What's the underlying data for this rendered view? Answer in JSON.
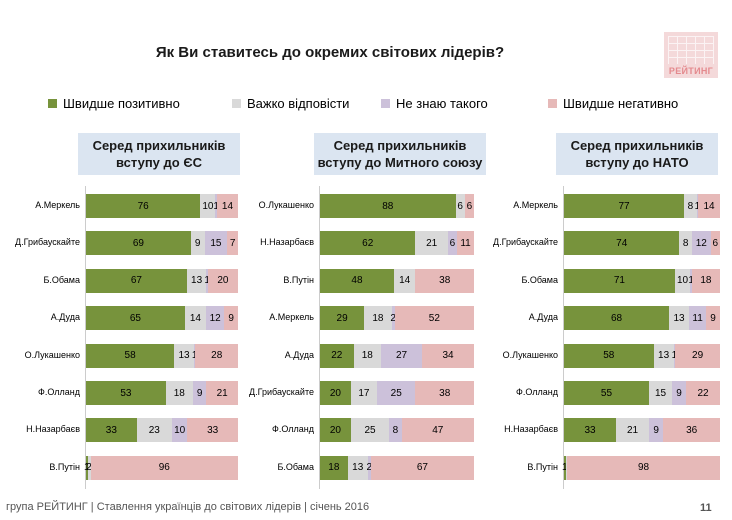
{
  "title": "Як Ви ставитесь до окремих світових лідерів?",
  "logo_text": "РЕЙТИНГ",
  "legend": [
    {
      "label": "Швидше позитивно",
      "color": "#77933c"
    },
    {
      "label": "Важко відповісти",
      "color": "#d9d9d9"
    },
    {
      "label": "Не знаю такого",
      "color": "#ccc1da"
    },
    {
      "label": "Швидше негативно",
      "color": "#e6b9b8"
    }
  ],
  "footer": "група РЕЙТИНГ | Ставлення українців до світових лідерів | січень 2016",
  "page_number": "11",
  "chart_data": [
    {
      "type": "bar",
      "stacked": true,
      "orientation": "horizontal",
      "title": "Серед прихильників\nвступу до ЄС",
      "categories": [
        "А.Меркель",
        "Д.Грибаускайте",
        "Б.Обама",
        "А.Дуда",
        "О.Лукашенко",
        "Ф.Олланд",
        "Н.Назарбаєв",
        "В.Путін"
      ],
      "series": [
        {
          "name": "Швидше позитивно",
          "values": [
            76,
            69,
            67,
            65,
            58,
            53,
            33,
            1
          ]
        },
        {
          "name": "Важко відповісти",
          "values": [
            10,
            9,
            13,
            14,
            13,
            18,
            23,
            2
          ]
        },
        {
          "name": "Не знаю такого",
          "values": [
            1,
            15,
            1,
            12,
            1,
            9,
            10,
            0
          ]
        },
        {
          "name": "Швидше негативно",
          "values": [
            14,
            7,
            20,
            9,
            28,
            21,
            33,
            96
          ]
        }
      ],
      "labels": [
        [
          "76",
          "10",
          "1",
          "14"
        ],
        [
          "69",
          "9",
          "15",
          "7"
        ],
        [
          "67",
          "13",
          "1",
          "20"
        ],
        [
          "65",
          "14",
          "12",
          "9"
        ],
        [
          "58",
          "13",
          "1",
          "28"
        ],
        [
          "53",
          "18",
          "9",
          "21"
        ],
        [
          "33",
          "23",
          "10",
          "33"
        ],
        [
          "1",
          "2",
          "",
          "96"
        ]
      ]
    },
    {
      "type": "bar",
      "stacked": true,
      "orientation": "horizontal",
      "title": "Серед прихильників\nвступу до Митного союзу",
      "categories": [
        "О.Лукашенко",
        "Н.Назарбаєв",
        "В.Путін",
        "А.Меркель",
        "А.Дуда",
        "Д.Грибаускайте",
        "Ф.Олланд",
        "Б.Обама"
      ],
      "series": [
        {
          "name": "Швидше позитивно",
          "values": [
            88,
            62,
            48,
            29,
            22,
            20,
            20,
            18
          ]
        },
        {
          "name": "Важко відповісти",
          "values": [
            6,
            21,
            14,
            18,
            18,
            17,
            25,
            13
          ]
        },
        {
          "name": "Не знаю такого",
          "values": [
            0,
            6,
            0,
            2,
            27,
            25,
            8,
            2
          ]
        },
        {
          "name": "Швидше негативно",
          "values": [
            6,
            11,
            38,
            52,
            34,
            38,
            47,
            67
          ]
        }
      ],
      "labels": [
        [
          "88",
          "6",
          "",
          "6"
        ],
        [
          "62",
          "21",
          "6",
          "11"
        ],
        [
          "48",
          "14",
          "",
          "38"
        ],
        [
          "29",
          "18",
          "2",
          "52"
        ],
        [
          "22",
          "18",
          "27",
          "34"
        ],
        [
          "20",
          "17",
          "25",
          "38"
        ],
        [
          "20",
          "25",
          "8",
          "47"
        ],
        [
          "18",
          "13",
          "2",
          "67"
        ]
      ]
    },
    {
      "type": "bar",
      "stacked": true,
      "orientation": "horizontal",
      "title": "Серед прихильників\nвступу до НАТО",
      "categories": [
        "А.Меркель",
        "Д.Грибаускайте",
        "Б.Обама",
        "А.Дуда",
        "О.Лукашенко",
        "Ф.Олланд",
        "Н.Назарбаєв",
        "В.Путін"
      ],
      "series": [
        {
          "name": "Швидше позитивно",
          "values": [
            77,
            74,
            71,
            68,
            58,
            55,
            33,
            1
          ]
        },
        {
          "name": "Важко відповісти",
          "values": [
            8,
            8,
            10,
            13,
            13,
            15,
            21,
            1
          ]
        },
        {
          "name": "Не знаю такого",
          "values": [
            1,
            12,
            1,
            11,
            1,
            9,
            9,
            0
          ]
        },
        {
          "name": "Швидше негативно",
          "values": [
            14,
            6,
            18,
            9,
            29,
            22,
            36,
            98
          ]
        }
      ],
      "labels": [
        [
          "77",
          "8",
          "1",
          "14"
        ],
        [
          "74",
          "8",
          "12",
          "6"
        ],
        [
          "71",
          "10",
          "1",
          "18"
        ],
        [
          "68",
          "13",
          "11",
          "9"
        ],
        [
          "58",
          "13",
          "1",
          "29"
        ],
        [
          "55",
          "15",
          "9",
          "22"
        ],
        [
          "33",
          "21",
          "9",
          "36"
        ],
        [
          "1",
          "",
          "",
          "98"
        ]
      ]
    }
  ]
}
